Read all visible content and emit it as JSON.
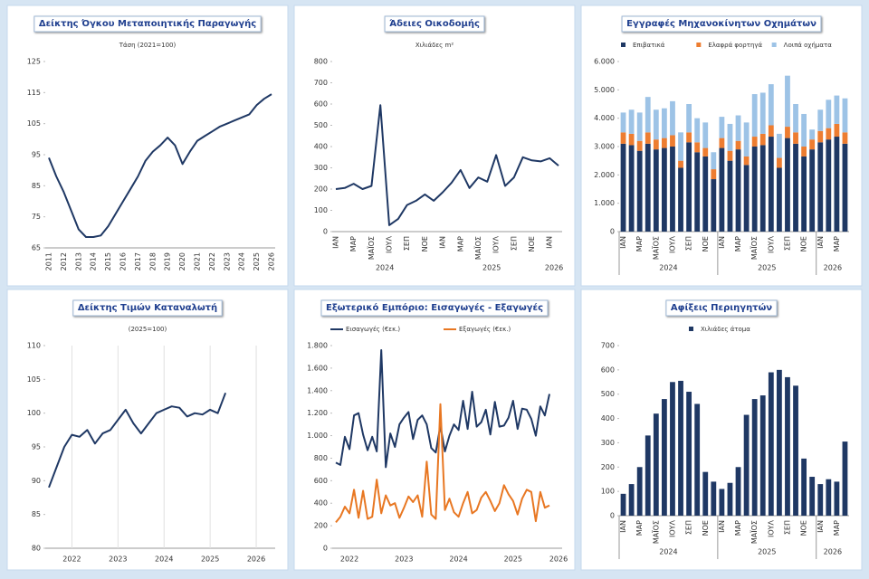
{
  "chart_data": [
    {
      "type": "line",
      "title": "Δείκτης Όγκου Μεταποιητικής Παραγωγής",
      "subtitle": "Τάση (2021=100)",
      "color": "#1f3864",
      "rotate_labels": true,
      "categories": [
        "2011",
        null,
        "2012",
        null,
        "2013",
        null,
        "2014",
        null,
        "2015",
        null,
        "2016",
        null,
        "2017",
        null,
        "2018",
        null,
        "2019",
        null,
        "2020",
        null,
        "2021",
        null,
        "2022",
        null,
        "2023",
        null,
        "2024",
        null,
        "2025",
        null,
        "2026"
      ],
      "values": [
        94,
        88,
        83,
        77,
        71,
        68.5,
        68.5,
        69,
        72,
        76,
        80,
        84,
        88,
        93,
        96,
        98,
        100.5,
        98,
        92,
        96,
        99.5,
        101,
        102.5,
        104,
        105,
        106,
        107,
        108,
        111,
        113,
        114.5
      ],
      "ylim": [
        65,
        125
      ],
      "yticks": [
        65,
        75,
        85,
        95,
        105,
        115,
        125
      ]
    },
    {
      "type": "line",
      "title": "Άδειες Οικοδομής",
      "subtitle": "Χιλιάδες m²",
      "color": "#1f3864",
      "rotate_labels": true,
      "categories": [
        "ΙΑΝ",
        null,
        "ΜΑΡ",
        null,
        "ΜΑΪΟΣ",
        null,
        "ΙΟΥΛ",
        null,
        "ΣΕΠ",
        null,
        "ΝΟΕ",
        null,
        "ΙΑΝ",
        null,
        "ΜΑΡ",
        null,
        "ΜΑΪΟΣ",
        null,
        "ΙΟΥΛ",
        null,
        "ΣΕΠ",
        null,
        "ΝΟΕ",
        null,
        "ΙΑΝ",
        null
      ],
      "groups": [
        "2024",
        "2025",
        "2026"
      ],
      "values": [
        200,
        205,
        225,
        200,
        215,
        595,
        30,
        60,
        125,
        145,
        175,
        145,
        185,
        230,
        290,
        205,
        255,
        235,
        360,
        215,
        255,
        350,
        335,
        330,
        345,
        310
      ],
      "ylim": [
        0,
        800
      ],
      "yticks": [
        0,
        100,
        200,
        300,
        400,
        500,
        600,
        700,
        800
      ]
    },
    {
      "type": "stacked_bar",
      "title": "Εγγραφές Μηχανοκίνητων Οχημάτων",
      "rotate_labels": true,
      "categories": [
        "ΙΑΝ",
        null,
        "ΜΑΡ",
        null,
        "ΜΑΪΟΣ",
        null,
        "ΙΟΥΛ",
        null,
        "ΣΕΠ",
        null,
        "ΝΟΕ",
        null,
        "ΙΑΝ",
        null,
        "ΜΑΡ",
        null,
        "ΜΑΪΟΣ",
        null,
        "ΙΟΥΛ",
        null,
        "ΣΕΠ",
        null,
        "ΝΟΕ",
        null,
        "ΙΑΝ",
        null,
        "ΜΑΡ",
        null
      ],
      "groups": [
        "2024",
        "2025",
        "2026"
      ],
      "series": [
        {
          "name": "Επιβατικά",
          "color": "#1f3864",
          "values": [
            3100,
            3050,
            2850,
            3100,
            2900,
            2950,
            3000,
            2250,
            3150,
            2800,
            2650,
            1850,
            2950,
            2500,
            2900,
            2350,
            3000,
            3050,
            3350,
            2250,
            3300,
            3100,
            2650,
            2900,
            3150,
            3250,
            3350,
            3100
          ]
        },
        {
          "name": "Ελαφρά φορτηγά",
          "color": "#ed7d31",
          "values": [
            400,
            400,
            350,
            400,
            350,
            350,
            400,
            250,
            350,
            350,
            300,
            350,
            350,
            350,
            300,
            300,
            350,
            400,
            400,
            350,
            400,
            400,
            350,
            350,
            400,
            400,
            450,
            400
          ]
        },
        {
          "name": "Λοιπά οχήματα",
          "color": "#9dc3e6",
          "values": [
            700,
            850,
            1000,
            1250,
            1050,
            1050,
            1200,
            1000,
            1000,
            850,
            900,
            600,
            750,
            950,
            900,
            1200,
            1500,
            1450,
            1450,
            850,
            1800,
            1000,
            1150,
            350,
            750,
            1000,
            1000,
            1200
          ]
        }
      ],
      "ylim": [
        0,
        6000
      ],
      "yticks": [
        0,
        {
          "value": 1000,
          "label": "1.000"
        },
        {
          "value": 2000,
          "label": "2.000"
        },
        {
          "value": 3000,
          "label": "3.000"
        },
        {
          "value": 4000,
          "label": "4.000"
        },
        {
          "value": 5000,
          "label": "5.000"
        },
        {
          "value": 6000,
          "label": "6.000"
        }
      ]
    },
    {
      "type": "line",
      "title": "Δείκτης Τιμών Καταναλωτή",
      "subtitle": "(2025=100)",
      "color": "#1f3864",
      "rotate_labels": false,
      "xgrid": true,
      "categories": [
        null,
        null,
        null,
        "2022",
        null,
        null,
        null,
        null,
        null,
        "2023",
        null,
        null,
        null,
        null,
        null,
        "2024",
        null,
        null,
        null,
        null,
        null,
        "2025",
        null,
        null,
        null,
        null,
        null,
        "2026",
        null,
        null
      ],
      "values": [
        89,
        92,
        95,
        96.8,
        96.5,
        97.5,
        95.5,
        97,
        97.5,
        99,
        100.5,
        98.5,
        97,
        98.5,
        100,
        100.5,
        101,
        100.8,
        99.5,
        100,
        99.8,
        100.5,
        100,
        103,
        null,
        null,
        null,
        null,
        null,
        null
      ],
      "ylim": [
        80,
        110
      ],
      "yticks": [
        80,
        85,
        90,
        95,
        100,
        105,
        110
      ]
    },
    {
      "type": "line",
      "title": "Εξωτερικό Εμπόριο: Εισαγωγές - Εξαγωγές",
      "rotate_labels": false,
      "categories": [
        null,
        null,
        null,
        "2022",
        null,
        null,
        null,
        null,
        null,
        null,
        null,
        null,
        null,
        null,
        null,
        "2023",
        null,
        null,
        null,
        null,
        null,
        null,
        null,
        null,
        null,
        null,
        null,
        "2024",
        null,
        null,
        null,
        null,
        null,
        null,
        null,
        null,
        null,
        null,
        null,
        "2025",
        null,
        null,
        null,
        null,
        null,
        null,
        null,
        null,
        null,
        "2026"
      ],
      "series": [
        {
          "name": "Εισαγωγές (€εκ.)",
          "color": "#1f3864",
          "values": [
            760,
            740,
            990,
            880,
            1180,
            1200,
            1010,
            870,
            990,
            860,
            1760,
            720,
            1020,
            900,
            1100,
            1160,
            1210,
            970,
            1140,
            1180,
            1100,
            890,
            850,
            1090,
            860,
            1000,
            1100,
            1050,
            1310,
            1060,
            1390,
            1080,
            1120,
            1230,
            1010,
            1300,
            1080,
            1090,
            1160,
            1310,
            1060,
            1240,
            1230,
            1150,
            1000,
            1260,
            1180,
            1370,
            null,
            null
          ]
        },
        {
          "name": "Εξαγωγές (€εκ.)",
          "color": "#e87722",
          "values": [
            230,
            280,
            370,
            310,
            520,
            270,
            510,
            260,
            280,
            610,
            310,
            470,
            380,
            400,
            270,
            360,
            460,
            410,
            470,
            280,
            770,
            300,
            260,
            1280,
            340,
            440,
            320,
            280,
            400,
            500,
            310,
            340,
            450,
            500,
            420,
            330,
            400,
            560,
            480,
            420,
            300,
            440,
            520,
            500,
            240,
            500,
            360,
            380,
            null,
            null
          ]
        }
      ],
      "ylim": [
        0,
        1800
      ],
      "yticks": [
        0,
        200,
        400,
        600,
        800,
        {
          "value": 1000,
          "label": "1.000"
        },
        {
          "value": 1200,
          "label": "1.200"
        },
        {
          "value": 1400,
          "label": "1.400"
        },
        {
          "value": 1600,
          "label": "1.600"
        },
        {
          "value": 1800,
          "label": "1.800"
        }
      ]
    },
    {
      "type": "stacked_bar",
      "title": "Αφίξεις Περιηγητών",
      "rotate_labels": true,
      "categories": [
        "ΙΑΝ",
        null,
        "ΜΑΡ",
        null,
        "ΜΑΪΟΣ",
        null,
        "ΙΟΥΛ",
        null,
        "ΣΕΠ",
        null,
        "ΝΟΕ",
        null,
        "ΙΑΝ",
        null,
        "ΜΑΡ",
        null,
        "ΜΑΪΟΣ",
        null,
        "ΙΟΥΛ",
        null,
        "ΣΕΠ",
        null,
        "ΝΟΕ",
        null,
        "ΙΑΝ",
        null,
        "ΜΑΡ",
        null
      ],
      "groups": [
        "2024",
        "2025",
        "2026"
      ],
      "series": [
        {
          "name": "Χιλιάδες άτομα",
          "color": "#1f3864",
          "values": [
            90,
            130,
            200,
            330,
            420,
            480,
            550,
            555,
            510,
            460,
            180,
            140,
            110,
            135,
            200,
            415,
            480,
            495,
            590,
            600,
            570,
            535,
            235,
            160,
            130,
            150,
            140,
            305
          ]
        }
      ],
      "ylim": [
        0,
        700
      ],
      "yticks": [
        0,
        100,
        200,
        300,
        400,
        500,
        600,
        700
      ]
    }
  ]
}
